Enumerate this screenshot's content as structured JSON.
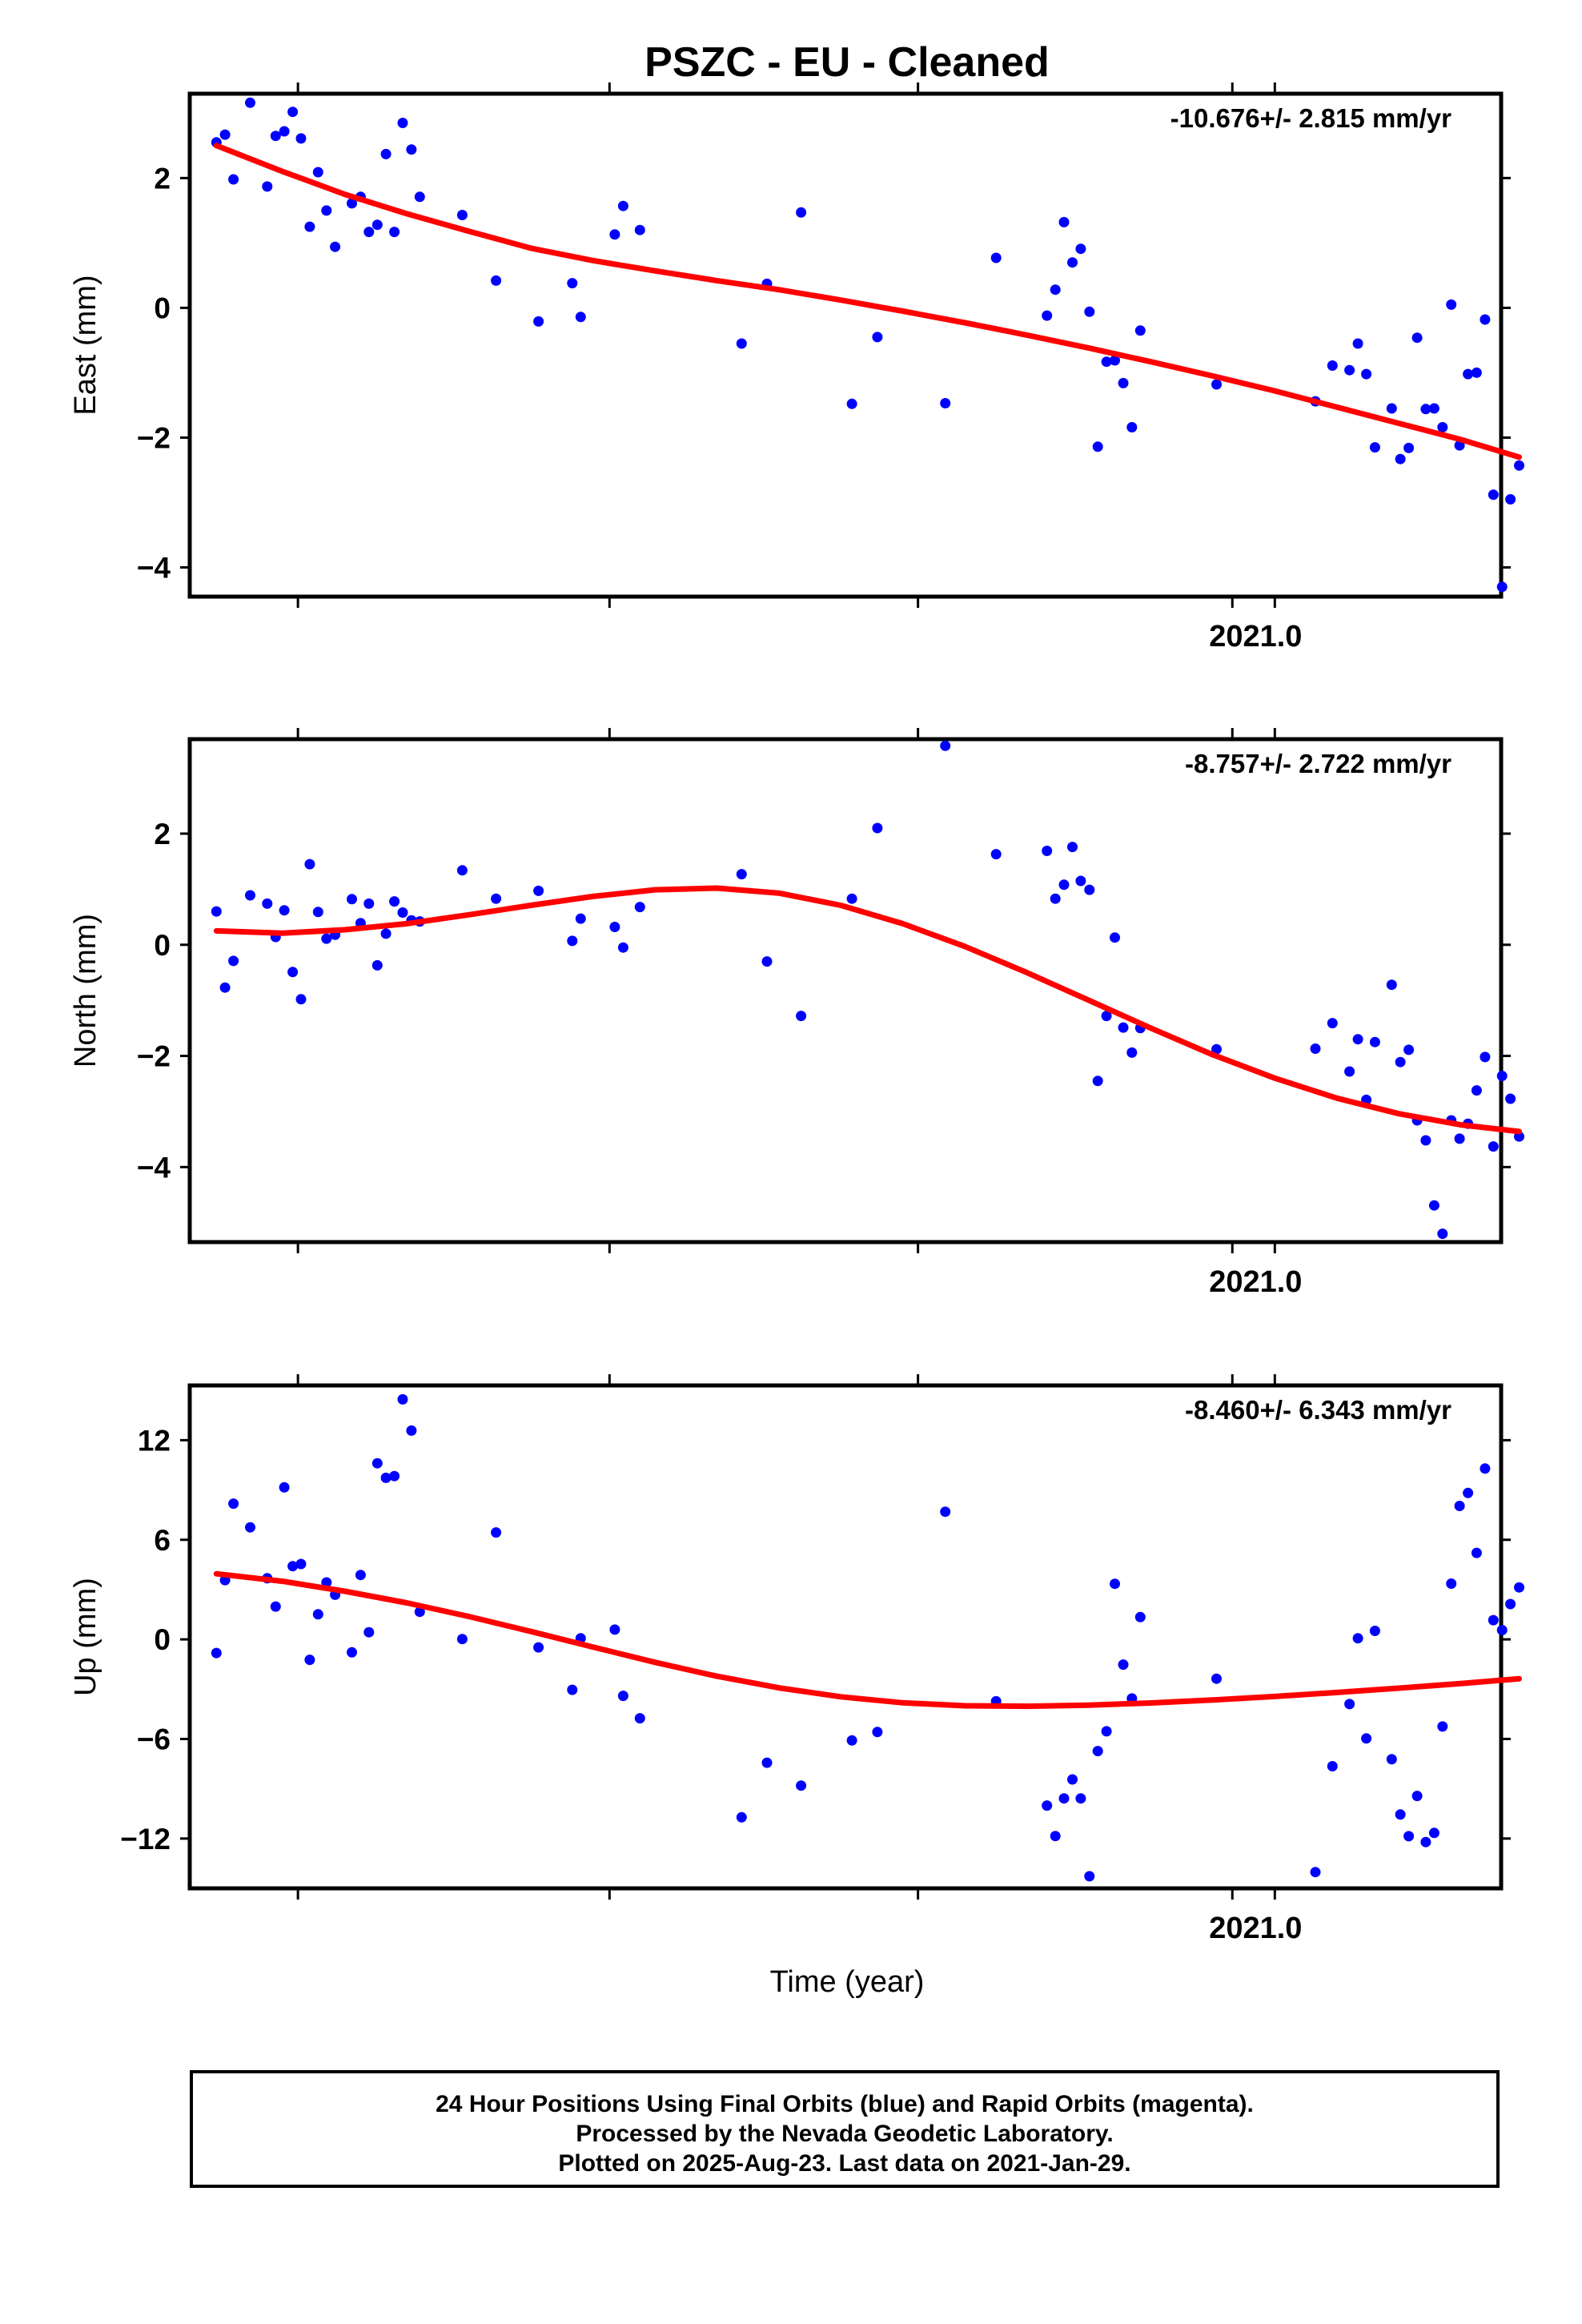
{
  "title": "PSZC  - EU - Cleaned",
  "xlabel": "Time (year)",
  "caption": {
    "line1": "24 Hour Positions Using Final Orbits (blue) and Rapid Orbits (magenta).",
    "line2": "Processed by the Nevada Geodetic Laboratory.",
    "line3": "Plotted on 2025-Aug-23. Last data on 2021-Jan-29."
  },
  "colors": {
    "points": "#0000ff",
    "fit": "#ff0000",
    "frame": "#000000"
  },
  "chart_data": [
    {
      "type": "scatter",
      "name": "east",
      "ylabel": "East (mm)",
      "rate_label": "-10.676+/- 2.815 mm/yr",
      "xlim": [
        2020.65,
        2021.073
      ],
      "ylim": [
        -4.45,
        3.3
      ],
      "yticks": [
        2,
        0,
        -2,
        -4
      ],
      "ytick_labels": [
        "2",
        "0",
        "−2",
        "−4"
      ],
      "xticks": [
        2020.6849,
        2020.7854,
        2020.8849,
        2020.9863,
        2021.0
      ],
      "xtick_labels": [
        "",
        "",
        "",
        "",
        "2021.0"
      ],
      "points": [
        [
          2020.6586,
          2.55
        ],
        [
          2020.6614,
          2.67
        ],
        [
          2020.6641,
          1.98
        ],
        [
          2020.6695,
          3.16
        ],
        [
          2020.675,
          1.87
        ],
        [
          2020.6777,
          2.65
        ],
        [
          2020.6805,
          2.72
        ],
        [
          2020.6832,
          3.02
        ],
        [
          2020.6859,
          2.61
        ],
        [
          2020.6887,
          1.25
        ],
        [
          2020.6914,
          2.09
        ],
        [
          2020.6941,
          1.5
        ],
        [
          2020.6969,
          0.94
        ],
        [
          2020.7023,
          1.61
        ],
        [
          2020.7051,
          1.71
        ],
        [
          2020.7078,
          1.17
        ],
        [
          2020.7105,
          1.28
        ],
        [
          2020.7133,
          2.37
        ],
        [
          2020.716,
          1.17
        ],
        [
          2020.7187,
          2.85
        ],
        [
          2020.7215,
          2.44
        ],
        [
          2020.7242,
          1.71
        ],
        [
          2020.7379,
          1.43
        ],
        [
          2020.7488,
          0.42
        ],
        [
          2020.7625,
          -0.21
        ],
        [
          2020.7734,
          0.38
        ],
        [
          2020.7761,
          -0.14
        ],
        [
          2020.7871,
          1.13
        ],
        [
          2020.7898,
          1.57
        ],
        [
          2020.7952,
          1.2
        ],
        [
          2020.828,
          -0.55
        ],
        [
          2020.8362,
          0.37
        ],
        [
          2020.8472,
          1.47
        ],
        [
          2020.8636,
          -1.48
        ],
        [
          2020.8718,
          -0.45
        ],
        [
          2020.8937,
          -1.47
        ],
        [
          2020.9101,
          0.77
        ],
        [
          2020.9265,
          -0.12
        ],
        [
          2020.9292,
          0.28
        ],
        [
          2020.932,
          1.32
        ],
        [
          2020.9347,
          0.7
        ],
        [
          2020.9374,
          0.91
        ],
        [
          2020.9402,
          -0.06
        ],
        [
          2020.9429,
          -2.14
        ],
        [
          2020.9457,
          -0.83
        ],
        [
          2020.9484,
          -0.81
        ],
        [
          2020.9511,
          -1.16
        ],
        [
          2020.9539,
          -1.84
        ],
        [
          2020.9566,
          -0.35
        ],
        [
          2020.9812,
          -1.18
        ],
        [
          2021.0131,
          -1.44
        ],
        [
          2021.0186,
          -0.89
        ],
        [
          2021.0241,
          -0.96
        ],
        [
          2021.0268,
          -0.55
        ],
        [
          2021.0295,
          -1.02
        ],
        [
          2021.0323,
          -2.15
        ],
        [
          2021.0377,
          -1.55
        ],
        [
          2021.0405,
          -2.33
        ],
        [
          2021.0432,
          -2.16
        ],
        [
          2021.0459,
          -0.46
        ],
        [
          2021.0487,
          -1.56
        ],
        [
          2021.0514,
          -1.55
        ],
        [
          2021.0541,
          -1.84
        ],
        [
          2021.0569,
          0.05
        ],
        [
          2021.0596,
          -2.12
        ],
        [
          2021.0623,
          -1.02
        ],
        [
          2021.0651,
          -1.0
        ],
        [
          2021.0678,
          -0.18
        ],
        [
          2021.0705,
          -2.88
        ],
        [
          2021.0733,
          -4.3
        ],
        [
          2021.076,
          -2.95
        ],
        [
          2021.0788,
          -2.43
        ]
      ],
      "fit": [
        [
          2020.6586,
          2.5
        ],
        [
          2020.68,
          2.1
        ],
        [
          2020.7,
          1.75
        ],
        [
          2020.72,
          1.45
        ],
        [
          2020.74,
          1.18
        ],
        [
          2020.76,
          0.92
        ],
        [
          2020.78,
          0.73
        ],
        [
          2020.8,
          0.57
        ],
        [
          2020.82,
          0.42
        ],
        [
          2020.84,
          0.28
        ],
        [
          2020.86,
          0.12
        ],
        [
          2020.88,
          -0.05
        ],
        [
          2020.9,
          -0.23
        ],
        [
          2020.92,
          -0.42
        ],
        [
          2020.94,
          -0.62
        ],
        [
          2020.96,
          -0.83
        ],
        [
          2020.98,
          -1.05
        ],
        [
          2021.0,
          -1.28
        ],
        [
          2021.02,
          -1.53
        ],
        [
          2021.04,
          -1.78
        ],
        [
          2021.06,
          -2.03
        ],
        [
          2021.0788,
          -2.3
        ]
      ]
    },
    {
      "type": "scatter",
      "name": "north",
      "ylabel": "North (mm)",
      "rate_label": "-8.757+/- 2.722 mm/yr",
      "xlim": [
        2020.65,
        2021.073
      ],
      "ylim": [
        -5.35,
        3.7
      ],
      "yticks": [
        2,
        0,
        -2,
        -4
      ],
      "ytick_labels": [
        "2",
        "0",
        "−2",
        "−4"
      ],
      "xticks": [
        2020.6849,
        2020.7854,
        2020.8849,
        2020.9863,
        2021.0
      ],
      "xtick_labels": [
        "",
        "",
        "",
        "",
        "2021.0"
      ],
      "points": [
        [
          2020.6586,
          0.6
        ],
        [
          2020.6614,
          -0.77
        ],
        [
          2020.6641,
          -0.29
        ],
        [
          2020.6695,
          0.89
        ],
        [
          2020.675,
          0.74
        ],
        [
          2020.6777,
          0.14
        ],
        [
          2020.6805,
          0.62
        ],
        [
          2020.6832,
          -0.49
        ],
        [
          2020.6859,
          -0.98
        ],
        [
          2020.6887,
          1.45
        ],
        [
          2020.6914,
          0.59
        ],
        [
          2020.6941,
          0.11
        ],
        [
          2020.6969,
          0.18
        ],
        [
          2020.7023,
          0.82
        ],
        [
          2020.7051,
          0.39
        ],
        [
          2020.7078,
          0.74
        ],
        [
          2020.7105,
          -0.37
        ],
        [
          2020.7133,
          0.2
        ],
        [
          2020.716,
          0.78
        ],
        [
          2020.7187,
          0.58
        ],
        [
          2020.7215,
          0.44
        ],
        [
          2020.7242,
          0.42
        ],
        [
          2020.7379,
          1.34
        ],
        [
          2020.7488,
          0.83
        ],
        [
          2020.7625,
          0.97
        ],
        [
          2020.7734,
          0.07
        ],
        [
          2020.7761,
          0.47
        ],
        [
          2020.7871,
          0.32
        ],
        [
          2020.7898,
          -0.05
        ],
        [
          2020.7952,
          0.68
        ],
        [
          2020.828,
          1.27
        ],
        [
          2020.8362,
          -0.3
        ],
        [
          2020.8472,
          -1.28
        ],
        [
          2020.8636,
          0.83
        ],
        [
          2020.8718,
          2.1
        ],
        [
          2020.8937,
          3.58
        ],
        [
          2020.9101,
          1.63
        ],
        [
          2020.9265,
          1.69
        ],
        [
          2020.9292,
          0.83
        ],
        [
          2020.932,
          1.08
        ],
        [
          2020.9347,
          1.76
        ],
        [
          2020.9374,
          1.15
        ],
        [
          2020.9402,
          0.99
        ],
        [
          2020.9429,
          -2.45
        ],
        [
          2020.9457,
          -1.28
        ],
        [
          2020.9484,
          0.13
        ],
        [
          2020.9511,
          -1.49
        ],
        [
          2020.9539,
          -1.94
        ],
        [
          2020.9566,
          -1.5
        ],
        [
          2020.9812,
          -1.88
        ],
        [
          2021.0131,
          -1.87
        ],
        [
          2021.0186,
          -1.41
        ],
        [
          2021.0241,
          -2.28
        ],
        [
          2021.0268,
          -1.7
        ],
        [
          2021.0295,
          -2.79
        ],
        [
          2021.0323,
          -1.75
        ],
        [
          2021.0377,
          -0.72
        ],
        [
          2021.0405,
          -2.11
        ],
        [
          2021.0432,
          -1.89
        ],
        [
          2021.0459,
          -3.16
        ],
        [
          2021.0487,
          -3.52
        ],
        [
          2021.0514,
          -4.69
        ],
        [
          2021.0541,
          -5.2
        ],
        [
          2021.0569,
          -3.16
        ],
        [
          2021.0596,
          -3.49
        ],
        [
          2021.0623,
          -3.22
        ],
        [
          2021.0651,
          -2.62
        ],
        [
          2021.0678,
          -2.02
        ],
        [
          2021.0705,
          -3.63
        ],
        [
          2021.0733,
          -2.36
        ],
        [
          2021.076,
          -2.77
        ],
        [
          2021.0788,
          -3.45
        ]
      ],
      "fit": [
        [
          2020.6586,
          0.25
        ],
        [
          2020.68,
          0.21
        ],
        [
          2020.7,
          0.27
        ],
        [
          2020.72,
          0.38
        ],
        [
          2020.74,
          0.54
        ],
        [
          2020.76,
          0.71
        ],
        [
          2020.78,
          0.87
        ],
        [
          2020.8,
          0.99
        ],
        [
          2020.82,
          1.02
        ],
        [
          2020.84,
          0.93
        ],
        [
          2020.86,
          0.71
        ],
        [
          2020.88,
          0.38
        ],
        [
          2020.9,
          -0.03
        ],
        [
          2020.92,
          -0.5
        ],
        [
          2020.94,
          -1.0
        ],
        [
          2020.96,
          -1.5
        ],
        [
          2020.98,
          -1.98
        ],
        [
          2021.0,
          -2.4
        ],
        [
          2021.02,
          -2.76
        ],
        [
          2021.04,
          -3.04
        ],
        [
          2021.06,
          -3.24
        ],
        [
          2021.0788,
          -3.36
        ]
      ]
    },
    {
      "type": "scatter",
      "name": "up",
      "ylabel": "Up (mm)",
      "rate_label": "-8.460+/- 6.343 mm/yr",
      "xlim": [
        2020.65,
        2021.073
      ],
      "ylim": [
        -15.0,
        15.3
      ],
      "yticks": [
        12,
        6,
        0,
        -6,
        -12
      ],
      "ytick_labels": [
        "12",
        "6",
        "0",
        "−6",
        "−12"
      ],
      "xticks": [
        2020.6849,
        2020.7854,
        2020.8849,
        2020.9863,
        2021.0
      ],
      "xtick_labels": [
        "",
        "",
        "",
        "",
        "2021.0"
      ],
      "points": [
        [
          2020.6586,
          -0.82
        ],
        [
          2020.6614,
          3.57
        ],
        [
          2020.6641,
          8.18
        ],
        [
          2020.6695,
          6.75
        ],
        [
          2020.675,
          3.68
        ],
        [
          2020.6777,
          1.98
        ],
        [
          2020.6805,
          9.16
        ],
        [
          2020.6832,
          4.41
        ],
        [
          2020.6859,
          4.54
        ],
        [
          2020.6887,
          -1.23
        ],
        [
          2020.6914,
          1.51
        ],
        [
          2020.6941,
          3.43
        ],
        [
          2020.6969,
          2.69
        ],
        [
          2020.7023,
          -0.78
        ],
        [
          2020.7051,
          3.88
        ],
        [
          2020.7078,
          0.43
        ],
        [
          2020.7105,
          10.61
        ],
        [
          2020.7133,
          9.73
        ],
        [
          2020.716,
          9.84
        ],
        [
          2020.7187,
          14.46
        ],
        [
          2020.7215,
          12.58
        ],
        [
          2020.7242,
          1.66
        ],
        [
          2020.7379,
          0.02
        ],
        [
          2020.7488,
          6.44
        ],
        [
          2020.7625,
          -0.48
        ],
        [
          2020.7734,
          -3.04
        ],
        [
          2020.7761,
          0.07
        ],
        [
          2020.7871,
          0.59
        ],
        [
          2020.7898,
          -3.4
        ],
        [
          2020.7952,
          -4.75
        ],
        [
          2020.828,
          -10.72
        ],
        [
          2020.8362,
          -7.43
        ],
        [
          2020.8472,
          -8.81
        ],
        [
          2020.8636,
          -6.09
        ],
        [
          2020.8718,
          -5.58
        ],
        [
          2020.8937,
          7.69
        ],
        [
          2020.9101,
          -3.73
        ],
        [
          2020.9265,
          -10.01
        ],
        [
          2020.9292,
          -11.85
        ],
        [
          2020.932,
          -9.58
        ],
        [
          2020.9347,
          -8.44
        ],
        [
          2020.9374,
          -9.58
        ],
        [
          2020.9402,
          -14.27
        ],
        [
          2020.9429,
          -6.73
        ],
        [
          2020.9457,
          -5.54
        ],
        [
          2020.9484,
          3.35
        ],
        [
          2020.9511,
          -1.52
        ],
        [
          2020.9539,
          -3.56
        ],
        [
          2020.9566,
          1.34
        ],
        [
          2020.9812,
          -2.37
        ],
        [
          2021.0131,
          -14.02
        ],
        [
          2021.0186,
          -7.64
        ],
        [
          2021.0241,
          -3.9
        ],
        [
          2021.0268,
          0.07
        ],
        [
          2021.0295,
          -5.97
        ],
        [
          2021.0323,
          0.51
        ],
        [
          2021.0377,
          -7.22
        ],
        [
          2021.0405,
          -10.55
        ],
        [
          2021.0432,
          -11.86
        ],
        [
          2021.0459,
          -9.43
        ],
        [
          2021.0487,
          -12.21
        ],
        [
          2021.0514,
          -11.66
        ],
        [
          2021.0541,
          -5.25
        ],
        [
          2021.0569,
          3.36
        ],
        [
          2021.0596,
          8.04
        ],
        [
          2021.0623,
          8.82
        ],
        [
          2021.0651,
          5.21
        ],
        [
          2021.0678,
          10.29
        ],
        [
          2021.0705,
          1.16
        ],
        [
          2021.0733,
          0.56
        ],
        [
          2021.076,
          2.13
        ],
        [
          2021.0788,
          3.13
        ]
      ],
      "fit": [
        [
          2020.6586,
          3.95
        ],
        [
          2020.68,
          3.5
        ],
        [
          2020.7,
          2.9
        ],
        [
          2020.72,
          2.2
        ],
        [
          2020.74,
          1.38
        ],
        [
          2020.76,
          0.48
        ],
        [
          2020.78,
          -0.46
        ],
        [
          2020.8,
          -1.38
        ],
        [
          2020.82,
          -2.22
        ],
        [
          2020.84,
          -2.92
        ],
        [
          2020.86,
          -3.46
        ],
        [
          2020.88,
          -3.82
        ],
        [
          2020.9,
          -4.0
        ],
        [
          2020.92,
          -4.03
        ],
        [
          2020.94,
          -3.96
        ],
        [
          2020.96,
          -3.83
        ],
        [
          2020.98,
          -3.65
        ],
        [
          2021.0,
          -3.44
        ],
        [
          2021.02,
          -3.2
        ],
        [
          2021.04,
          -2.94
        ],
        [
          2021.06,
          -2.66
        ],
        [
          2021.0788,
          -2.37
        ]
      ]
    }
  ]
}
